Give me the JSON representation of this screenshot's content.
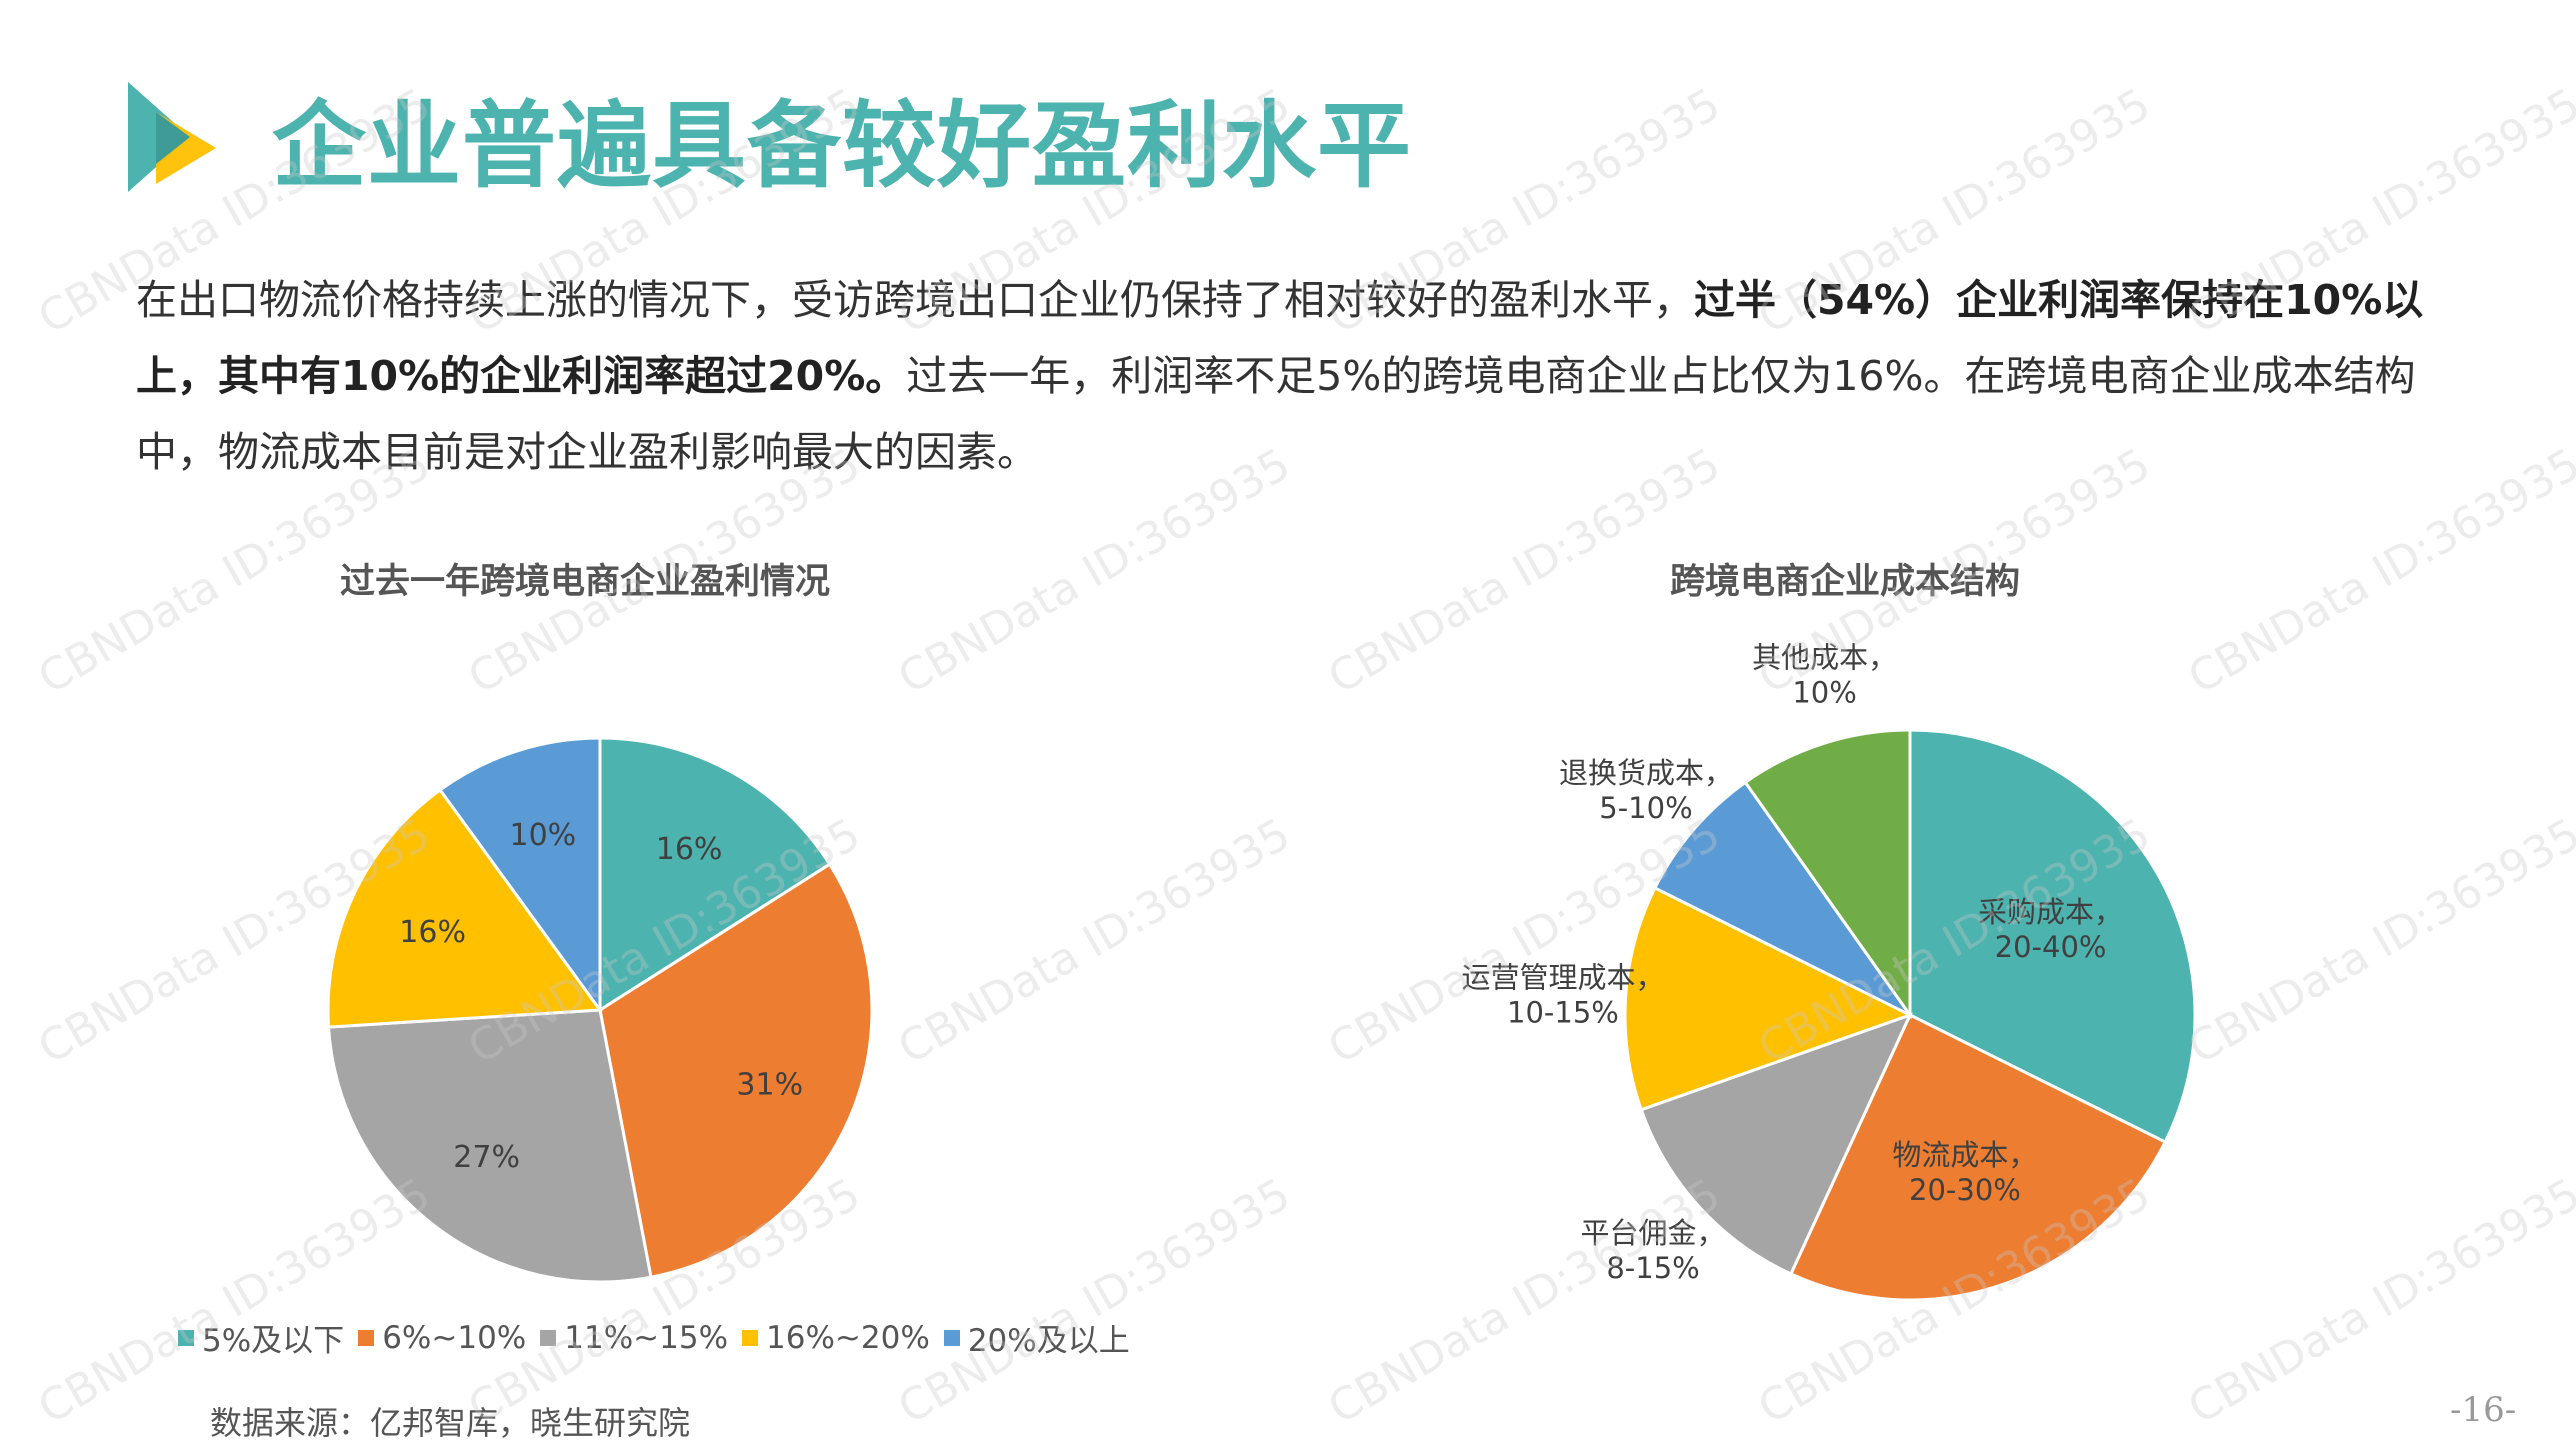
{
  "page": {
    "title": "企业普遍具备较好盈利水平",
    "intro": {
      "p1": "在出口物流价格持续上涨的情况下，受访跨境出口企业仍保持了相对较好的盈利水平，",
      "bold": "过半（54%）企业利润率保持在10%以上，其中有10%的企业利润率超过20%。",
      "p2": "过去一年，利润率不足5%的跨境电商企业占比仅为16%。在跨境电商企业成本结构中，物流成本目前是对企业盈利影响最大的因素。"
    },
    "source": "数据来源：亿邦智库，晓生研究院",
    "page_number": "-16-",
    "watermark": "CBNData ID:363935",
    "colors": {
      "title": "#4db3ae",
      "teal": "#4db3ae",
      "orange": "#ed7d31",
      "gray": "#a5a5a5",
      "yellow": "#ffc000",
      "blue": "#5b9bd5",
      "green": "#70ad47"
    }
  },
  "chart_data": [
    {
      "type": "pie",
      "title": "过去一年跨境电商企业盈利情况",
      "categories": [
        "5%及以下",
        "6%~10%",
        "11%~15%",
        "16%~20%",
        "20%及以上"
      ],
      "values": [
        16,
        31,
        27,
        16,
        10
      ],
      "labels": [
        "16%",
        "31%",
        "27%",
        "16%",
        "10%"
      ],
      "colors": [
        "#4db3ae",
        "#ed7d31",
        "#a5a5a5",
        "#ffc000",
        "#5b9bd5"
      ],
      "legend": "bottom"
    },
    {
      "type": "pie",
      "title": "跨境电商企业成本结构",
      "categories": [
        "采购成本",
        "物流成本",
        "平台佣金",
        "运营管理成本",
        "退换货成本",
        "其他成本"
      ],
      "range_labels": [
        "20-40%",
        "20-30%",
        "8-15%",
        "10-15%",
        "5-10%",
        "10%"
      ],
      "values": [
        33,
        25,
        13,
        13,
        8,
        10
      ],
      "colors": [
        "#4db3ae",
        "#ed7d31",
        "#a5a5a5",
        "#ffc000",
        "#5b9bd5",
        "#70ad47"
      ],
      "legend": "none"
    }
  ]
}
